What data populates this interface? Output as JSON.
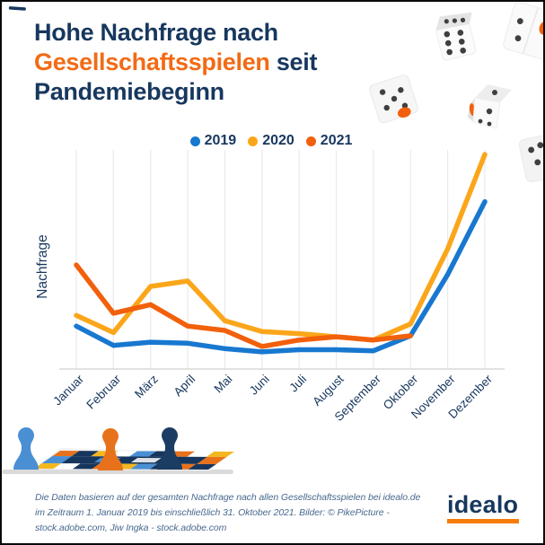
{
  "title": {
    "line1": "Hohe Nachfrage nach",
    "highlight": "Gesellschaftsspielen",
    "after_highlight": " seit",
    "line3": "Pandemiebeginn"
  },
  "colors": {
    "navy": "#17375E",
    "title_orange": "#F26B15",
    "grid": "#EAEAEA",
    "axis": "#D8D8D8",
    "footer_text": "#49698E",
    "logo_underline": "#F57C0B",
    "dice_dot": "#3F3F3F",
    "dice_orange": "#F2600C",
    "board_navy": "#17365D",
    "board_blue": "#4A8FD3",
    "board_orange": "#E8721C",
    "board_yellow": "#F3B71F",
    "baseline_gray": "#DADADA"
  },
  "legend": {
    "items": [
      {
        "label": "2019",
        "color": "#1878D0"
      },
      {
        "label": "2020",
        "color": "#FBA61A"
      },
      {
        "label": "2021",
        "color": "#F2600C"
      }
    ]
  },
  "chart_data": {
    "type": "line",
    "title": "",
    "xlabel": "",
    "ylabel": "Nachfrage",
    "categories": [
      "Januar",
      "Februar",
      "März",
      "April",
      "Mai",
      "Juni",
      "Juli",
      "August",
      "September",
      "Oktober",
      "November",
      "Dezember"
    ],
    "series": [
      {
        "name": "2019",
        "color": "#1878D0",
        "values": [
          20,
          11,
          12.5,
          12,
          9.5,
          8,
          9,
          9,
          8.5,
          15.5,
          44,
          78
        ]
      },
      {
        "name": "2020",
        "color": "#FBA61A",
        "values": [
          25,
          17,
          38.5,
          41,
          22.5,
          17.5,
          16.5,
          15,
          13.5,
          21,
          56,
          100
        ]
      },
      {
        "name": "2021",
        "color": "#F2600C",
        "values": [
          48.5,
          26,
          30,
          20,
          18,
          10.5,
          13.5,
          15,
          13.5,
          15.5,
          null,
          null
        ]
      }
    ],
    "ylim": [
      0,
      105
    ],
    "grid": "vertical-only",
    "legend_position": "top",
    "note": "relative demand index, no numeric y-axis ticks shown"
  },
  "footer": {
    "lines": [
      "Die Daten basieren auf der gesamten Nachfrage nach allen Gesellschaftsspielen bei idealo.de",
      "im Zeitraum 1. Januar 2019 bis einschließlich 31. Oktober 2021. Bilder: © PikePicture -",
      "stock.adobe.com, Jiw Ingka - stock.adobe.com"
    ]
  },
  "logo": {
    "text": "idealo"
  }
}
